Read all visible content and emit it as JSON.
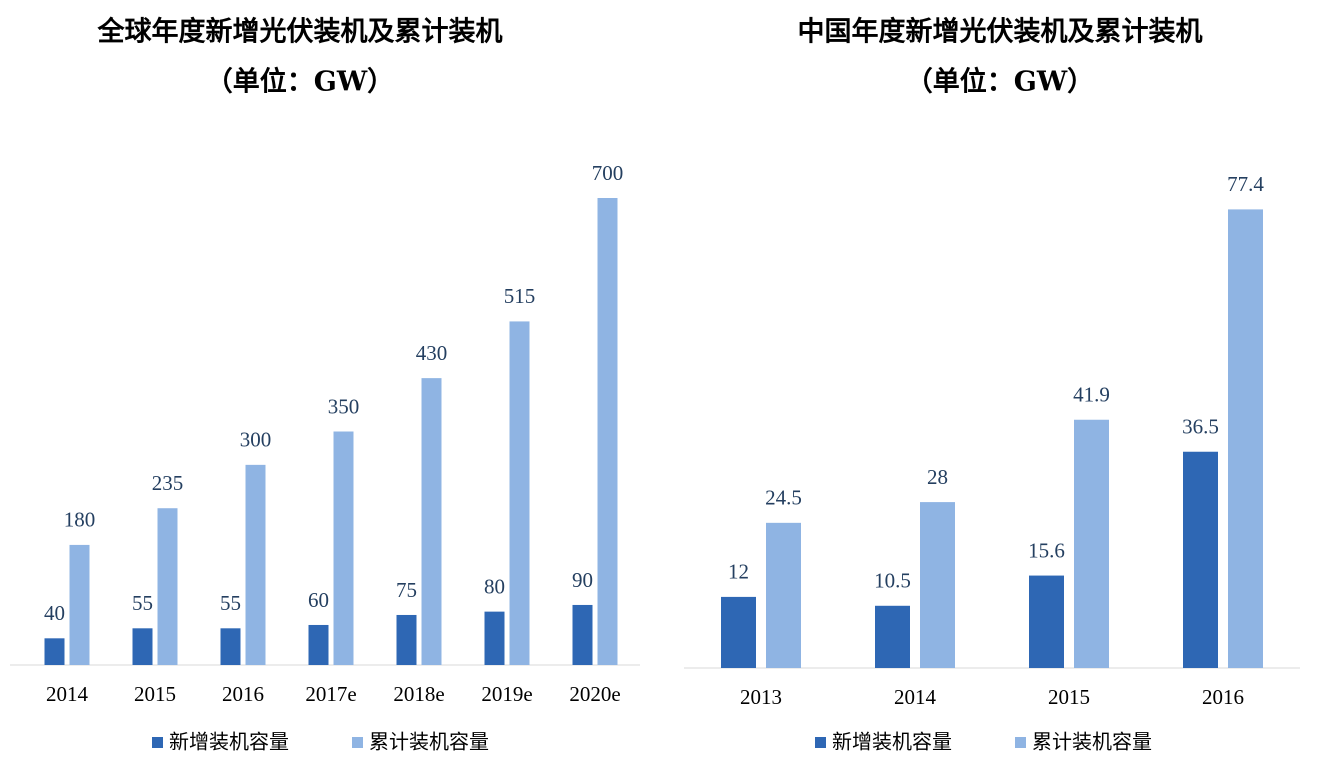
{
  "chart_data": [
    {
      "type": "bar",
      "title": "全球年度新增光伏装机及累计装机",
      "subtitle": "（单位：GW）",
      "categories": [
        "2014",
        "2015",
        "2016",
        "2017e",
        "2018e",
        "2019e",
        "2020e"
      ],
      "series": [
        {
          "name": "新增装机容量",
          "color": "#2e67b4",
          "values": [
            40,
            55,
            55,
            60,
            75,
            80,
            90
          ]
        },
        {
          "name": "累计装机容量",
          "color": "#8fb4e3",
          "values": [
            180,
            235,
            300,
            350,
            430,
            515,
            700
          ]
        }
      ],
      "ylim": [
        0,
        700
      ]
    },
    {
      "type": "bar",
      "title": "中国年度新增光伏装机及累计装机",
      "subtitle": "（单位：GW）",
      "categories": [
        "2013",
        "2014",
        "2015",
        "2016"
      ],
      "series": [
        {
          "name": "新增装机容量",
          "color": "#2e67b4",
          "values": [
            12,
            10.5,
            15.6,
            36.5
          ]
        },
        {
          "name": "累计装机容量",
          "color": "#8fb4e3",
          "values": [
            24.5,
            28,
            41.9,
            77.4
          ]
        }
      ],
      "ylim": [
        0,
        80
      ]
    }
  ]
}
